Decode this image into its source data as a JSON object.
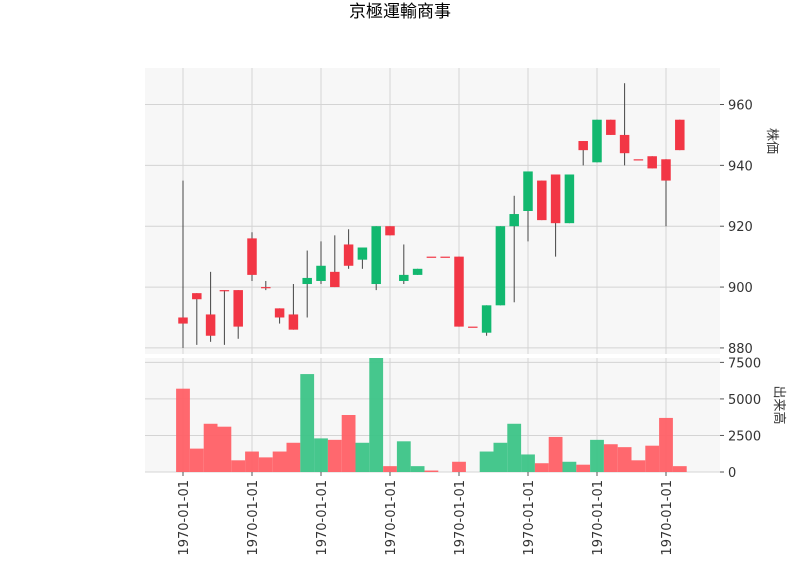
{
  "chart_data": {
    "type": "candlestick",
    "title": "京極運輸商事",
    "price_panel": {
      "ylabel": "株価",
      "ylim": [
        878,
        972
      ],
      "yticks": [
        880,
        900,
        920,
        940,
        960
      ],
      "grid": true
    },
    "volume_panel": {
      "ylabel": "出来高",
      "ylim": [
        0,
        7800
      ],
      "yticks": [
        0,
        2500,
        5000,
        7500
      ],
      "grid": true
    },
    "xtick_labels": [
      "1970-01-01",
      "1970-01-01",
      "1970-01-01",
      "1970-01-01",
      "1970-01-01",
      "1970-01-01",
      "1970-01-01",
      "1970-01-01"
    ],
    "xtick_indices": [
      0,
      5,
      10,
      15,
      20,
      25,
      30,
      35
    ],
    "up_color": "#12b86f",
    "down_color": "#f23645",
    "candles": [
      {
        "open": 890,
        "high": 935,
        "low": 880,
        "close": 888,
        "volume": 5700
      },
      {
        "open": 898,
        "high": 898,
        "low": 881,
        "close": 896,
        "volume": 1600
      },
      {
        "open": 891,
        "high": 905,
        "low": 882,
        "close": 884,
        "volume": 3300
      },
      {
        "open": 899,
        "high": 899,
        "low": 881,
        "close": 899,
        "volume": 3100
      },
      {
        "open": 899,
        "high": 899,
        "low": 883,
        "close": 887,
        "volume": 800
      },
      {
        "open": 916,
        "high": 918,
        "low": 902,
        "close": 904,
        "volume": 1400
      },
      {
        "open": 900,
        "high": 902,
        "low": 899,
        "close": 900,
        "volume": 1000
      },
      {
        "open": 893,
        "high": 893,
        "low": 888,
        "close": 890,
        "volume": 1400
      },
      {
        "open": 891,
        "high": 901,
        "low": 886,
        "close": 886,
        "volume": 2000
      },
      {
        "open": 901,
        "high": 912,
        "low": 890,
        "close": 903,
        "volume": 6700
      },
      {
        "open": 902,
        "high": 915,
        "low": 901,
        "close": 907,
        "volume": 2300
      },
      {
        "open": 905,
        "high": 917,
        "low": 900,
        "close": 900,
        "volume": 2200
      },
      {
        "open": 914,
        "high": 919,
        "low": 906,
        "close": 907,
        "volume": 3900
      },
      {
        "open": 909,
        "high": 913,
        "low": 906,
        "close": 913,
        "volume": 2000
      },
      {
        "open": 901,
        "high": 920,
        "low": 899,
        "close": 920,
        "volume": 7800
      },
      {
        "open": 920,
        "high": 920,
        "low": 917,
        "close": 917,
        "volume": 400
      },
      {
        "open": 902,
        "high": 914,
        "low": 901,
        "close": 904,
        "volume": 2100
      },
      {
        "open": 904,
        "high": 906,
        "low": 904,
        "close": 906,
        "volume": 400
      },
      {
        "open": 910,
        "high": 910,
        "low": 910,
        "close": 910,
        "volume": 100
      },
      {
        "open": 910,
        "high": 910,
        "low": 910,
        "close": 910,
        "volume": 0
      },
      {
        "open": 910,
        "high": 910,
        "low": 887,
        "close": 887,
        "volume": 700
      },
      {
        "open": 887,
        "high": 887,
        "low": 887,
        "close": 887,
        "volume": 0
      },
      {
        "open": 885,
        "high": 894,
        "low": 884,
        "close": 894,
        "volume": 1400
      },
      {
        "open": 894,
        "high": 920,
        "low": 894,
        "close": 920,
        "volume": 2000
      },
      {
        "open": 920,
        "high": 930,
        "low": 895,
        "close": 924,
        "volume": 3300
      },
      {
        "open": 925,
        "high": 938,
        "low": 915,
        "close": 938,
        "volume": 1200
      },
      {
        "open": 935,
        "high": 935,
        "low": 922,
        "close": 922,
        "volume": 600
      },
      {
        "open": 937,
        "high": 937,
        "low": 910,
        "close": 921,
        "volume": 2400
      },
      {
        "open": 921,
        "high": 937,
        "low": 921,
        "close": 937,
        "volume": 700
      },
      {
        "open": 948,
        "high": 948,
        "low": 940,
        "close": 945,
        "volume": 500
      },
      {
        "open": 941,
        "high": 955,
        "low": 941,
        "close": 955,
        "volume": 2200
      },
      {
        "open": 955,
        "high": 955,
        "low": 950,
        "close": 950,
        "volume": 1900
      },
      {
        "open": 950,
        "high": 967,
        "low": 940,
        "close": 944,
        "volume": 1700
      },
      {
        "open": 942,
        "high": 942,
        "low": 942,
        "close": 942,
        "volume": 800
      },
      {
        "open": 943,
        "high": 943,
        "low": 939,
        "close": 939,
        "volume": 1800
      },
      {
        "open": 942,
        "high": 942,
        "low": 920,
        "close": 935,
        "volume": 3700
      },
      {
        "open": 955,
        "high": 955,
        "low": 945,
        "close": 945,
        "volume": 400
      }
    ]
  }
}
